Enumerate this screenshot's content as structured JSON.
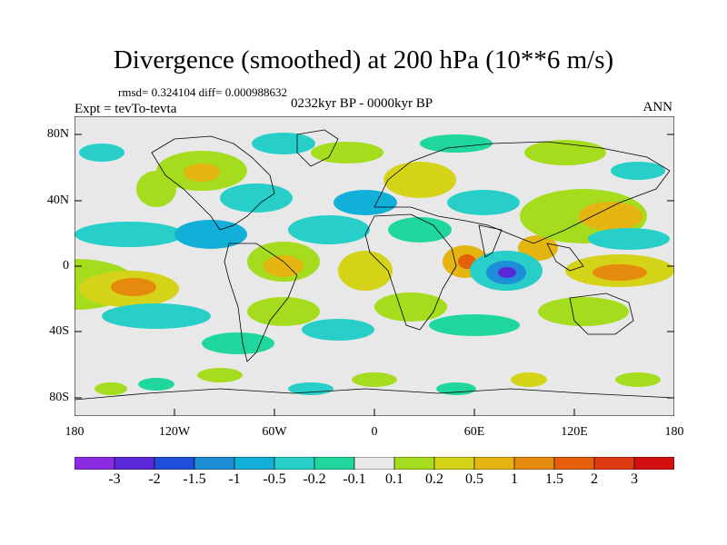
{
  "title": "Divergence (smoothed) at 200 hPa (10**6 m/s)",
  "stats_text": "rmsd= 0.324104 diff= 0.000988632",
  "period": "0232kyr BP - 0000kyr BP",
  "experiment": "Expt = tevTo-tevta",
  "season": "ANN",
  "lat_labels": [
    "80N",
    "40N",
    "0",
    "40S",
    "80S"
  ],
  "lon_labels": [
    "180",
    "120W",
    "60W",
    "0",
    "60E",
    "120E",
    "180"
  ],
  "colorbar": {
    "labels": [
      "-3",
      "-2",
      "-1.5",
      "-1",
      "-0.5",
      "-0.2",
      "-0.1",
      "0.1",
      "0.2",
      "0.5",
      "1",
      "1.5",
      "2",
      "3"
    ],
    "colors": [
      "#8a2be2",
      "#5a28d6",
      "#1f4fd8",
      "#1e8ed9",
      "#12b0d8",
      "#27cfc8",
      "#1fd79d",
      "#e8e8e8",
      "#a6dc1e",
      "#d4d318",
      "#e4b410",
      "#e58a0c",
      "#e6600c",
      "#e03a14",
      "#d21010"
    ]
  },
  "legend_colors": {
    "background": "#e8e8e8",
    "coastline": "#000000"
  }
}
